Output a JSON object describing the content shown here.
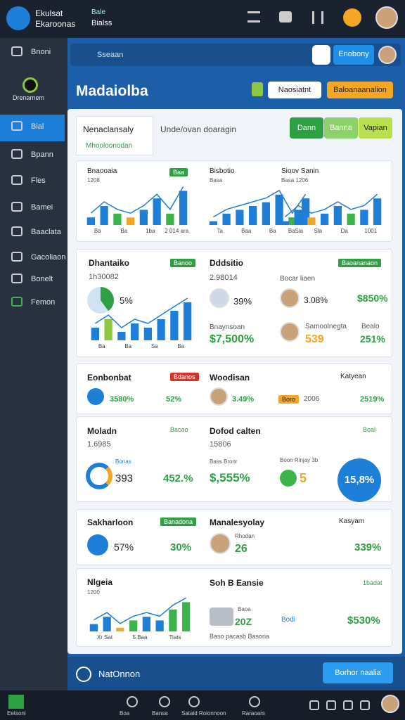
{
  "topbar": {
    "brand": "Ekulsat",
    "brand_sub": "Ekaroonas",
    "tag": "Bale",
    "tag_sub": "Bialss"
  },
  "sidebar": {
    "items": [
      "Bnoni",
      "Drenarnem",
      "Bial",
      "Bpann",
      "Fles",
      "Bamei",
      "Baaclata",
      "Gacoliaon",
      "Bonelt",
      "Femon"
    ]
  },
  "search": {
    "placeholder": "Sseaan",
    "button": "Enobony"
  },
  "header": {
    "title": "Madaiolba",
    "select": "Naosiatnt",
    "action": "Baloanaanalion"
  },
  "tabs": {
    "active": "Nenaclansaly",
    "active_sub": "Mhooloonodan",
    "other": "Unde/ovan doaragin",
    "buttons": [
      "Dann",
      "Banna",
      "Vapian"
    ]
  },
  "mini_charts": [
    {
      "title": "Bnaooaia",
      "sub": "1208",
      "badge": "Baa",
      "values": [
        2,
        5,
        3,
        2,
        4,
        7,
        3,
        9
      ],
      "colors": [
        "#1e7fd8",
        "#1e7fd8",
        "#3cb44b",
        "#f5a623",
        "#1e7fd8",
        "#1e7fd8",
        "#3cb44b",
        "#1e7fd8"
      ],
      "labels": [
        "Ba",
        "Ba",
        "1ba",
        "2 014 ara"
      ]
    },
    {
      "title": "Bisbotio",
      "sub": "Basa",
      "values": [
        1,
        3,
        4,
        5,
        6,
        8,
        2,
        7
      ],
      "colors": [
        "#1e7fd8",
        "#1e7fd8",
        "#1e7fd8",
        "#1e7fd8",
        "#1e7fd8",
        "#1e7fd8",
        "#3cb44b",
        "#1e7fd8"
      ],
      "labels": [
        "Ta",
        "Baa",
        "Ba",
        "Sia"
      ]
    },
    {
      "title": "Sioov Sanin",
      "sub": "Basa 1206",
      "values": [
        1,
        4,
        2,
        3,
        5,
        3,
        4,
        7
      ],
      "colors": [
        "#1e7fd8",
        "#1e7fd8",
        "#f5a623",
        "#1e7fd8",
        "#1e7fd8",
        "#3cb44b",
        "#1e7fd8",
        "#1e7fd8"
      ],
      "labels": [
        "Ba",
        "Sla",
        "Da",
        "1001"
      ]
    },
    {
      "title": "Nlgeia",
      "sub": "1200",
      "values": [
        2,
        4,
        1,
        3,
        4,
        3,
        6,
        8
      ],
      "colors": [
        "#1e7fd8",
        "#1e7fd8",
        "#f5a623",
        "#3cb44b",
        "#1e7fd8",
        "#1e7fd8",
        "#3cb44b",
        "#3cb44b"
      ],
      "labels": [
        "Xr Sat",
        "5.Baa",
        "Tiats"
      ]
    },
    {
      "title": "Dhantaiko",
      "sub": "1h30082",
      "values": [
        3,
        5,
        2,
        4,
        3,
        5,
        7,
        9
      ],
      "colors": [
        "#1e7fd8",
        "#8dc63f",
        "#1e7fd8",
        "#1e7fd8",
        "#1e7fd8",
        "#1e7fd8",
        "#1e7fd8",
        "#1e7fd8"
      ],
      "labels": [
        "Ba",
        "Ba",
        "Sa",
        "Ba"
      ]
    }
  ],
  "cards": {
    "c1": {
      "badge": "Banoo",
      "pct": "5%",
      "r_title": "Dddsitio",
      "r_sub": "2.98014",
      "r_pct": "39%",
      "r_lbl": "Bnaynsoan",
      "r_val": "$7,500%",
      "r_badge": "Baoananaon",
      "p1": "Bocar liaen",
      "p1v": "3.08%",
      "p1g": "$850%",
      "p2": "Samoolnegta",
      "p2b": "Bealo",
      "p2v": "539",
      "p2g": "251%"
    },
    "c2": {
      "title": "Eonbonbat",
      "badge": "Bdanos",
      "a": "3580%",
      "b": "52%",
      "r_title": "Woodisan",
      "r_a": "3.49%",
      "r_tag": "Boro",
      "r_b": "2006",
      "r_lbl": "Katyean",
      "r_c": "2519%"
    },
    "c3": {
      "title": "Moladn",
      "sub": "1.6985",
      "badge": "Bacao",
      "lbl": "Bonas",
      "a": "393",
      "b": "452.%",
      "r_title": "Dofod calten",
      "r_sub": "15806",
      "r_lbl": "Bass Bronr",
      "r_a": "$,555%",
      "r_badge": "Boal",
      "r_lbl2": "Boon Rinjay 3b",
      "r_b": "5",
      "r_c": "15,8%"
    },
    "c4": {
      "title": "Sakharloon",
      "badge": "Banadona",
      "a": "57%",
      "b": "30%",
      "r_title": "Manalesyolay",
      "r_lbl": "Rhodan",
      "r_a": "26",
      "r_lbl2": "Kasyam",
      "r_b": "339%"
    },
    "c5": {
      "r_title": "Soh B Eansie",
      "r_badge": "1badat",
      "r_lbl": "Baoa",
      "r_a": "20Z",
      "r_lbl2": "Bodi",
      "r_b": "$530%",
      "r_foot": "Baso pacasb Basoria"
    }
  },
  "bottom": {
    "label": "NatOnnon",
    "button": "Borhor naalia"
  },
  "footer": {
    "items": [
      "Eetsoni",
      "Boa",
      "Bansa",
      "Sataid Roionnoon",
      "Raraoars"
    ]
  }
}
